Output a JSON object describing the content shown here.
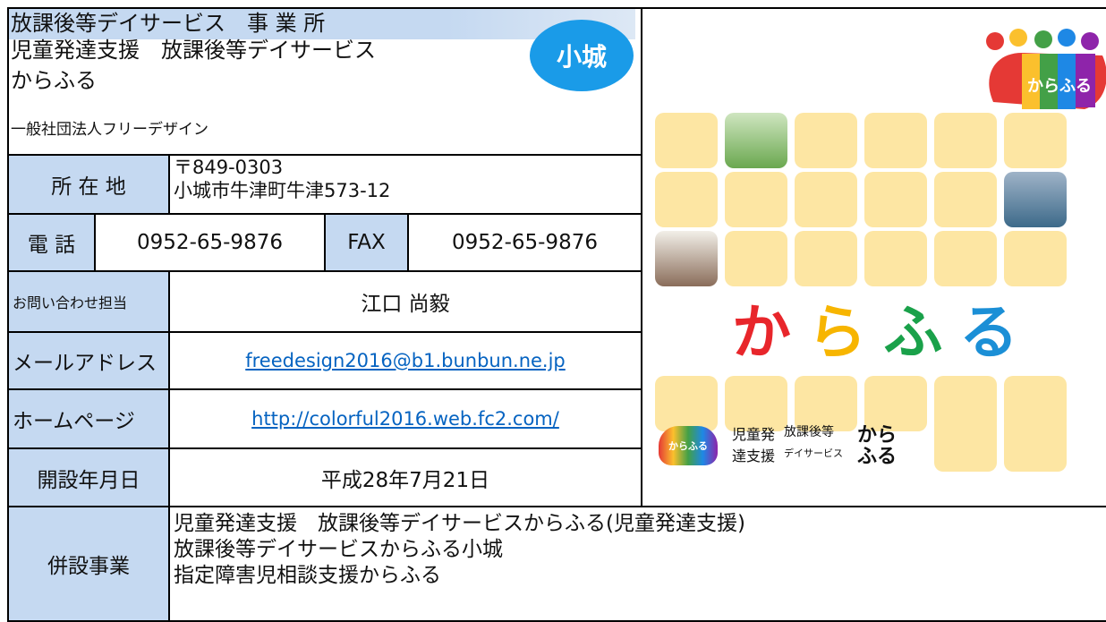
{
  "header": {
    "lines": [
      "放課後等デイサービス　事 業 所",
      "児童発達支援　放課後等デイサービス",
      "からふる"
    ],
    "badge": "小城",
    "organization": "一般社団法人フリーデザイン"
  },
  "table": {
    "address": {
      "label": "所 在 地",
      "lines": [
        "〒849-0303",
        "小城市牛津町牛津573-12"
      ]
    },
    "phone": {
      "label": "電 話",
      "value": "0952-65-9876",
      "fax_label": "FAX",
      "fax_value": "0952-65-9876"
    },
    "contact": {
      "label": "お問い合わせ担当",
      "value": "江口 尚毅"
    },
    "email": {
      "label": "メールアドレス",
      "value": "freedesign2016@b1.bunbun.ne.jp"
    },
    "homepage": {
      "label": "ホームページ",
      "value": "http://colorful2016.web.fc2.com/"
    },
    "established": {
      "label": "開設年月日",
      "value": "平成28年7月21日"
    },
    "affiliated": {
      "label": "併設事業",
      "lines": [
        "児童発達支援　放課後等デイサービスからふる(児童発達支援)",
        "放課後等デイサービスからふる小城",
        "指定障害児相談支援からふる"
      ]
    }
  },
  "logo": {
    "top_text": "からふる",
    "big_text": [
      "か",
      "ら",
      "ふ",
      "る"
    ],
    "small_mark": "からふる",
    "services": [
      "児童発",
      "達支援",
      "放課後等",
      "デイサービス"
    ],
    "name": [
      "から",
      "ふる"
    ]
  }
}
